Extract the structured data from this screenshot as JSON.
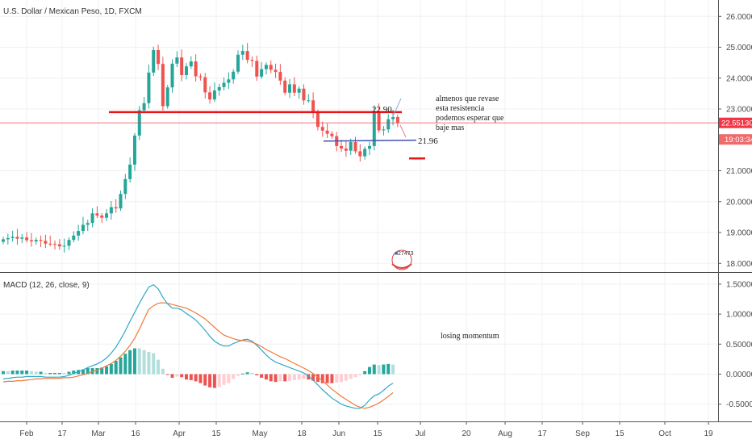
{
  "chart_data": [
    {
      "type": "candlestick",
      "title": "U.S. Dollar / Mexican Peso, 1D, FXCM",
      "ylim": [
        17.85,
        26.4
      ],
      "y_ticks": [
        "26.00000",
        "25.00000",
        "24.00000",
        "23.00000",
        "21.00000",
        "20.00000",
        "19.00000",
        "18.00000"
      ],
      "x_ticks": [
        "Feb",
        "17",
        "Mar",
        "16",
        "Apr",
        "15",
        "May",
        "18",
        "Jun",
        "15",
        "Jul",
        "20",
        "Aug",
        "17",
        "Sep",
        "15",
        "Oct",
        "19"
      ],
      "last_price": "22.55130",
      "countdown": "19:03:34",
      "resistance_level": 22.9,
      "resistance_label": "22.90",
      "support_level": 21.96,
      "support_label": "21.96",
      "target_level": 21.4,
      "annotation_lines": [
        "almenos que revase",
        "esta resistencia",
        "podemos esperar  que",
        "baje mas"
      ],
      "badge_text": "27473",
      "series": [
        {
          "name": "close",
          "values": [
            18.78,
            18.82,
            18.86,
            18.8,
            18.84,
            18.75,
            18.71,
            18.76,
            18.73,
            18.64,
            18.63,
            18.62,
            18.55,
            18.57,
            18.76,
            18.9,
            19.05,
            19.25,
            19.31,
            19.62,
            19.55,
            19.48,
            19.62,
            19.82,
            19.78,
            20.25,
            20.73,
            21.2,
            22.14,
            22.96,
            23.19,
            24.18,
            24.91,
            24.46,
            23.09,
            23.7,
            24.47,
            24.67,
            24.1,
            24.38,
            24.54,
            24.06,
            24.03,
            23.54,
            23.31,
            23.6,
            23.71,
            23.85,
            23.96,
            24.21,
            24.76,
            24.88,
            24.59,
            24.56,
            24.05,
            24.29,
            24.43,
            24.27,
            24.2,
            23.92,
            23.53,
            23.8,
            23.53,
            23.66,
            23.28,
            23.28,
            22.87,
            22.42,
            22.3,
            22.2,
            22.12,
            21.8,
            21.72,
            21.65,
            21.93,
            21.63,
            21.47,
            21.71,
            21.8,
            22.92,
            22.31,
            22.34,
            22.67,
            22.74,
            22.55
          ]
        },
        {
          "name": "open",
          "values": [
            18.7,
            18.78,
            18.82,
            18.86,
            18.8,
            18.84,
            18.75,
            18.71,
            18.76,
            18.73,
            18.64,
            18.63,
            18.62,
            18.55,
            18.57,
            18.76,
            18.9,
            19.05,
            19.25,
            19.31,
            19.62,
            19.55,
            19.48,
            19.62,
            19.82,
            19.78,
            20.25,
            20.73,
            21.2,
            22.14,
            22.96,
            23.19,
            24.18,
            24.91,
            24.46,
            23.09,
            23.7,
            24.47,
            24.67,
            24.1,
            24.38,
            24.54,
            24.06,
            24.03,
            23.54,
            23.31,
            23.6,
            23.71,
            23.85,
            23.96,
            24.21,
            24.76,
            24.88,
            24.59,
            24.56,
            24.05,
            24.29,
            24.43,
            24.27,
            24.2,
            23.92,
            23.53,
            23.8,
            23.53,
            23.66,
            23.28,
            23.28,
            22.87,
            22.42,
            22.3,
            22.2,
            22.12,
            21.8,
            21.72,
            21.65,
            21.93,
            21.63,
            21.47,
            21.71,
            21.8,
            22.92,
            22.31,
            22.34,
            22.67,
            22.74
          ]
        }
      ]
    },
    {
      "type": "macd",
      "title": "MACD (12, 26, close, 9)",
      "ylim": [
        -0.72,
        1.62
      ],
      "y_ticks": [
        "1.50000",
        "1.00000",
        "0.50000",
        "0.00000",
        "-0.50000"
      ],
      "annotation": "losing momentum",
      "series": [
        {
          "name": "macd",
          "values": [
            -0.08,
            -0.07,
            -0.06,
            -0.05,
            -0.05,
            -0.04,
            -0.04,
            -0.04,
            -0.04,
            -0.05,
            -0.05,
            -0.05,
            -0.05,
            -0.04,
            -0.02,
            0.01,
            0.04,
            0.07,
            0.11,
            0.14,
            0.17,
            0.21,
            0.27,
            0.35,
            0.45,
            0.58,
            0.72,
            0.88,
            1.03,
            1.18,
            1.32,
            1.45,
            1.49,
            1.42,
            1.28,
            1.17,
            1.1,
            1.1,
            1.07,
            1.01,
            0.96,
            0.9,
            0.82,
            0.73,
            0.63,
            0.55,
            0.5,
            0.47,
            0.47,
            0.51,
            0.54,
            0.57,
            0.58,
            0.55,
            0.48,
            0.4,
            0.32,
            0.25,
            0.2,
            0.17,
            0.14,
            0.11,
            0.08,
            0.05,
            0.02,
            -0.03,
            -0.1,
            -0.18,
            -0.26,
            -0.33,
            -0.4,
            -0.45,
            -0.5,
            -0.53,
            -0.55,
            -0.57,
            -0.57,
            -0.52,
            -0.43,
            -0.36,
            -0.33,
            -0.27,
            -0.2,
            -0.15
          ]
        },
        {
          "name": "signal",
          "values": [
            -0.13,
            -0.12,
            -0.12,
            -0.11,
            -0.11,
            -0.1,
            -0.09,
            -0.08,
            -0.08,
            -0.07,
            -0.07,
            -0.07,
            -0.07,
            -0.06,
            -0.06,
            -0.05,
            -0.03,
            -0.01,
            0.01,
            0.04,
            0.07,
            0.1,
            0.14,
            0.18,
            0.23,
            0.3,
            0.38,
            0.48,
            0.6,
            0.75,
            0.92,
            1.08,
            1.14,
            1.18,
            1.19,
            1.18,
            1.16,
            1.14,
            1.12,
            1.1,
            1.06,
            1.02,
            0.97,
            0.92,
            0.85,
            0.78,
            0.71,
            0.65,
            0.62,
            0.59,
            0.57,
            0.56,
            0.55,
            0.53,
            0.5,
            0.46,
            0.41,
            0.37,
            0.33,
            0.29,
            0.26,
            0.22,
            0.18,
            0.14,
            0.1,
            0.06,
            0.01,
            -0.05,
            -0.11,
            -0.18,
            -0.25,
            -0.31,
            -0.37,
            -0.42,
            -0.47,
            -0.52,
            -0.55,
            -0.57,
            -0.55,
            -0.52,
            -0.48,
            -0.43,
            -0.37,
            -0.31
          ]
        }
      ]
    }
  ],
  "colors": {
    "up": "#26a69a",
    "down": "#ef5350",
    "macd_line": "#2ca8c8",
    "signal_line": "#f07a3a",
    "hist_up": "#26a69a",
    "hist_up_weak": "#b2dfdb",
    "hist_down": "#ef5350",
    "hist_down_weak": "#ffcdd2",
    "resistance": "#e8151b",
    "support": "#3f51b5",
    "price_line": "#f23645"
  }
}
